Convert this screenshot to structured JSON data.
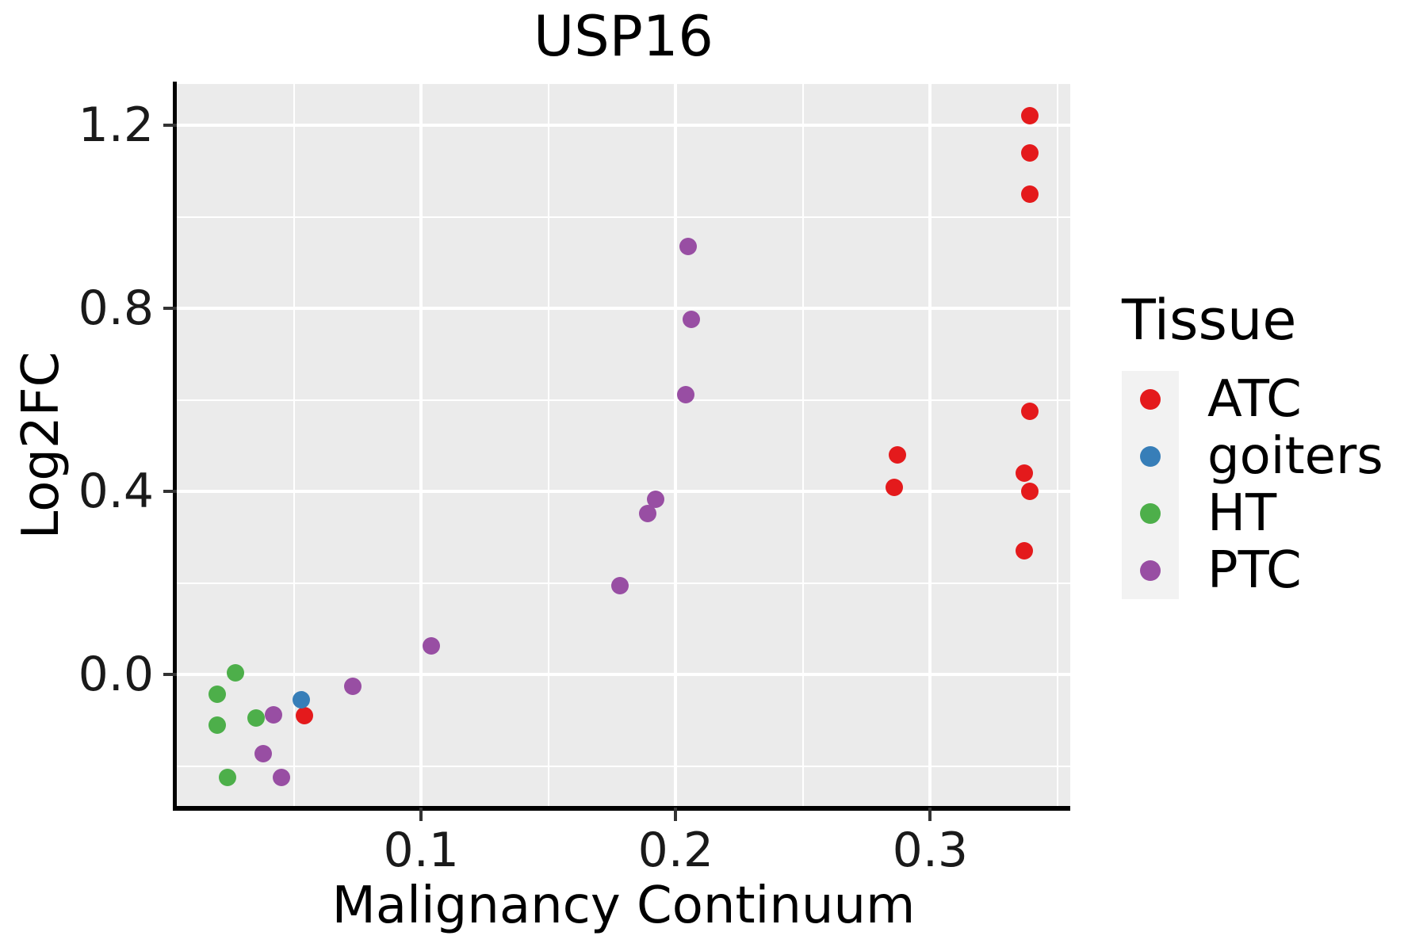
{
  "title": "USP16",
  "axes": {
    "x": {
      "label": "Malignancy Continuum",
      "major_ticks": [
        0.1,
        0.2,
        0.3
      ],
      "tick_labels": [
        "0.1",
        "0.2",
        "0.3"
      ],
      "minor_ticks": [
        0.05,
        0.15,
        0.25,
        0.35
      ]
    },
    "y": {
      "label": "Log2FC",
      "major_ticks": [
        0.0,
        0.4,
        0.8,
        1.2
      ],
      "tick_labels": [
        "0.0",
        "0.4",
        "0.8",
        "1.2"
      ],
      "minor_ticks": [
        -0.2,
        0.2,
        0.6,
        1.0
      ]
    }
  },
  "legend": {
    "title": "Tissue",
    "items": [
      {
        "label": "ATC",
        "color": "#E41A1C"
      },
      {
        "label": "goiters",
        "color": "#377EB8"
      },
      {
        "label": "HT",
        "color": "#4DAF4A"
      },
      {
        "label": "PTC",
        "color": "#984EA3"
      }
    ]
  },
  "colors": {
    "panel_bg": "#EBEBEB",
    "grid": "#FFFFFF",
    "legend_key_bg": "#F2F2F2",
    "axis_line": "#000000",
    "tick_text": "#1a1a1a"
  },
  "chart_data": {
    "type": "scatter",
    "title": "USP16",
    "xlabel": "Malignancy Continuum",
    "ylabel": "Log2FC",
    "xlim": [
      0.004,
      0.355
    ],
    "ylim": [
      -0.29,
      1.29
    ],
    "grid": true,
    "legend_title": "Tissue",
    "legend_position": "right",
    "series": [
      {
        "name": "ATC",
        "color": "#E41A1C",
        "points": [
          [
            0.339,
            1.22
          ],
          [
            0.339,
            1.14
          ],
          [
            0.339,
            1.05
          ],
          [
            0.339,
            0.575
          ],
          [
            0.287,
            0.48
          ],
          [
            0.286,
            0.41
          ],
          [
            0.337,
            0.44
          ],
          [
            0.339,
            0.4
          ],
          [
            0.337,
            0.27
          ],
          [
            0.054,
            -0.09
          ]
        ]
      },
      {
        "name": "goiters",
        "color": "#377EB8",
        "points": [
          [
            0.053,
            -0.055
          ]
        ]
      },
      {
        "name": "HT",
        "color": "#4DAF4A",
        "points": [
          [
            0.027,
            0.005
          ],
          [
            0.02,
            -0.043
          ],
          [
            0.02,
            -0.11
          ],
          [
            0.035,
            -0.095
          ],
          [
            0.024,
            -0.224
          ]
        ]
      },
      {
        "name": "PTC",
        "color": "#984EA3",
        "points": [
          [
            0.205,
            0.935
          ],
          [
            0.206,
            0.776
          ],
          [
            0.204,
            0.611
          ],
          [
            0.192,
            0.383
          ],
          [
            0.189,
            0.352
          ],
          [
            0.178,
            0.194
          ],
          [
            0.104,
            0.063
          ],
          [
            0.073,
            -0.025
          ],
          [
            0.042,
            -0.088
          ],
          [
            0.038,
            -0.172
          ],
          [
            0.045,
            -0.225
          ]
        ]
      }
    ]
  }
}
